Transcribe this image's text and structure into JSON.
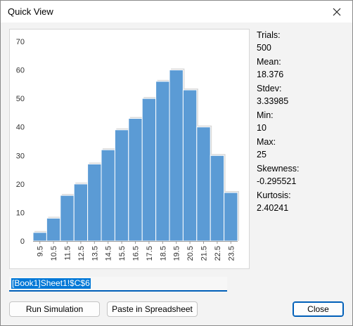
{
  "window": {
    "title": "Quick View",
    "close_icon": "close-icon"
  },
  "chart_data": {
    "type": "bar",
    "categories": [
      "9.5",
      "10.5",
      "11.5",
      "12.5",
      "13.5",
      "14.5",
      "15.5",
      "16.5",
      "17.5",
      "18.5",
      "19.5",
      "20.5",
      "21.5",
      "22.5",
      "23.5"
    ],
    "values": [
      3,
      8,
      16,
      20,
      27,
      32,
      39,
      43,
      50,
      56,
      60,
      53,
      40,
      30,
      17
    ],
    "y_ticks": [
      "0",
      "10",
      "20",
      "30",
      "40",
      "50",
      "60",
      "70"
    ],
    "ylim": [
      0,
      70
    ],
    "xlabel": "",
    "ylabel": "",
    "title": "",
    "bar_color": "#5b9bd5",
    "bar_edge_color": "#ffffff",
    "grid": false
  },
  "stats": {
    "trials_label": "Trials:",
    "trials_value": "500",
    "mean_label": "Mean:",
    "mean_value": "18.376",
    "stdev_label": "Stdev:",
    "stdev_value": "3.33985",
    "min_label": "Min:",
    "min_value": "10",
    "max_label": "Max:",
    "max_value": "25",
    "skewness_label": "Skewness:",
    "skewness_value": "-0.295521",
    "kurtosis_label": "Kurtosis:",
    "kurtosis_value": "2.40241"
  },
  "cell_reference": {
    "value": "[Book1]Sheet1!$C$6"
  },
  "buttons": {
    "run_simulation": "Run Simulation",
    "paste_in_spreadsheet": "Paste in Spreadsheet",
    "close": "Close"
  },
  "colors": {
    "accent": "#005fb8",
    "selection": "#0078d7"
  }
}
